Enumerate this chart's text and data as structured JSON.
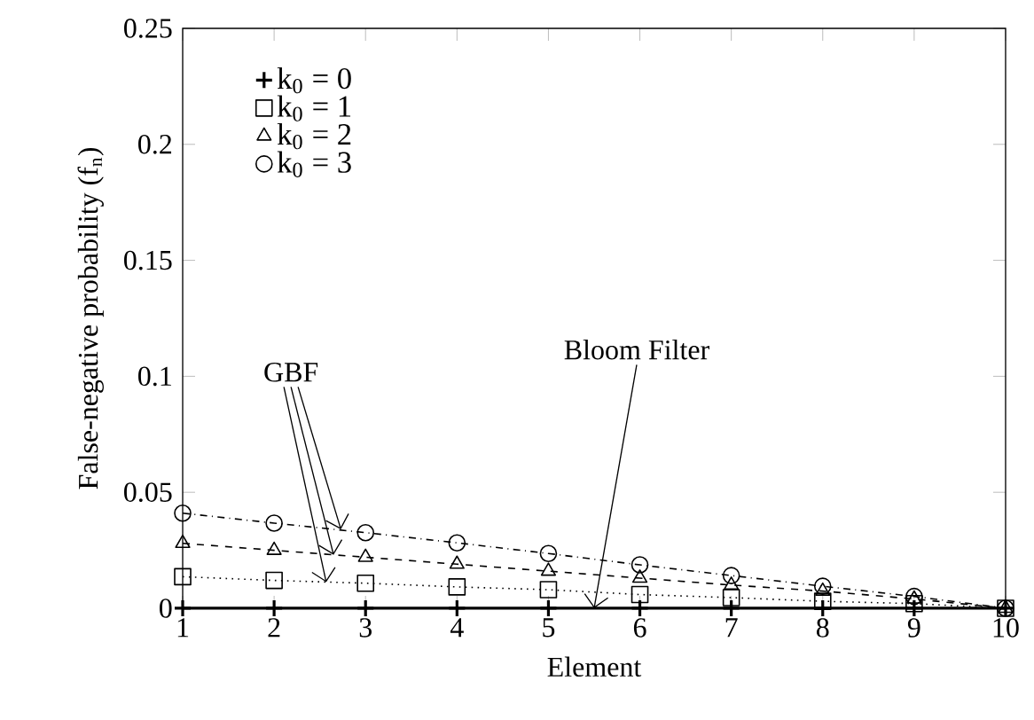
{
  "chart_data": {
    "type": "line",
    "xlabel": "Element",
    "ylabel": "False-negative probability (f$_{n}$)",
    "x": [
      1,
      2,
      3,
      4,
      5,
      6,
      7,
      8,
      9,
      10
    ],
    "series": [
      {
        "name": "k$_{0}$ = 0",
        "color": "#000000",
        "marker": "cross",
        "line_style": "solid",
        "values": [
          0,
          0,
          0,
          0,
          0,
          0,
          0,
          0,
          0,
          0
        ]
      },
      {
        "name": "k$_{0}$ = 1",
        "color": "#000000",
        "marker": "square",
        "line_style": "dotted",
        "values": [
          0.0136,
          0.012,
          0.0108,
          0.0092,
          0.008,
          0.0059,
          0.0046,
          0.003,
          0.002,
          0
        ]
      },
      {
        "name": "k$_{0}$ = 2",
        "color": "#000000",
        "marker": "triangle",
        "line_style": "dashed",
        "values": [
          0.028,
          0.025,
          0.022,
          0.019,
          0.016,
          0.013,
          0.01,
          0.0074,
          0.004,
          0
        ]
      },
      {
        "name": "k$_{0}$ = 3",
        "color": "#000000",
        "marker": "circle",
        "line_style": "dashdot",
        "values": [
          0.041,
          0.0367,
          0.0326,
          0.0282,
          0.0236,
          0.0187,
          0.0141,
          0.0095,
          0.0051,
          0
        ]
      }
    ],
    "xlim": [
      1,
      10
    ],
    "xticks": [
      1,
      2,
      3,
      4,
      5,
      6,
      7,
      8,
      9,
      10
    ],
    "ylim": [
      0,
      0.25
    ],
    "yticks": [
      0,
      0.05,
      0.1,
      0.15,
      0.2,
      0.25
    ],
    "grid": false,
    "legend": "top left",
    "annotations": [
      {
        "text": "GBF",
        "x": 2.65,
        "y": 0.022
      },
      {
        "text": "Bloom Filter",
        "x": 5.5,
        "y": 0
      }
    ]
  }
}
